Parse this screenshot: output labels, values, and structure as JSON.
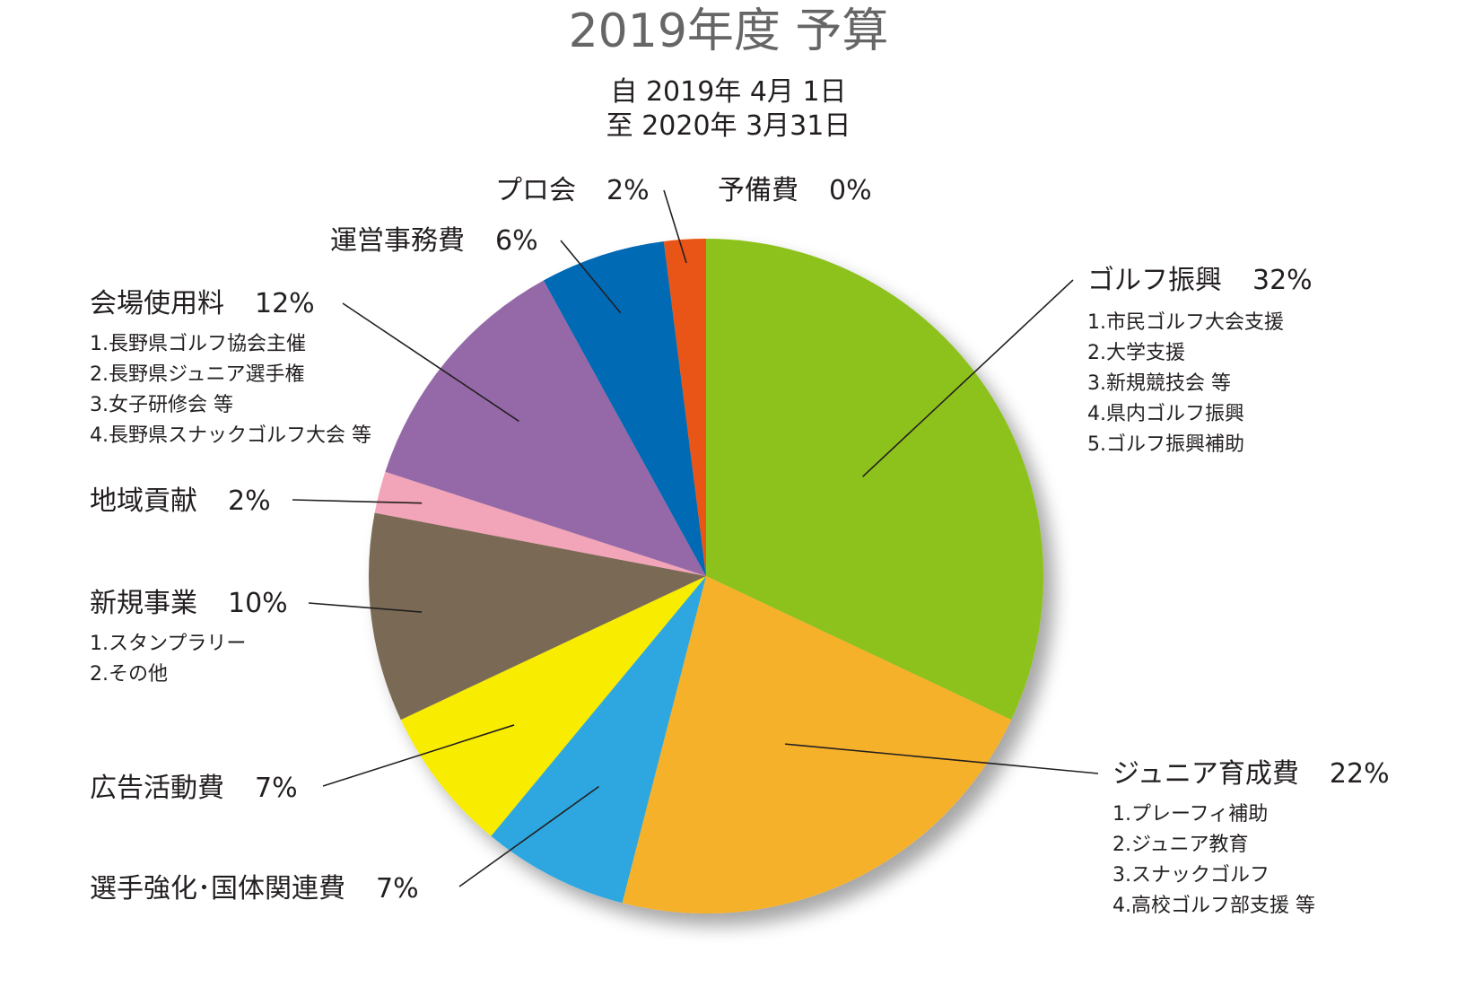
{
  "chart_data": {
    "type": "pie",
    "title": "2019年度 予算",
    "period": [
      "自 2019年 4月 1日",
      "至 2020年 3月31日"
    ],
    "slices": [
      {
        "name": "ゴルフ振興",
        "value": 32,
        "label": "32%",
        "color": "#8dc21f",
        "notes": [
          "1.市民ゴルフ大会支援",
          "2.大学支援",
          "3.新規競技会 等",
          "4.県内ゴルフ振興",
          "5.ゴルフ振興補助"
        ]
      },
      {
        "name": "ジュニア育成費",
        "value": 22,
        "label": "22%",
        "color": "#f6b12a",
        "notes": [
          "1.プレーフィ補助",
          "2.ジュニア教育",
          "3.スナックゴルフ",
          "4.高校ゴルフ部支援 等"
        ]
      },
      {
        "name": "選手強化･国体関連費",
        "value": 7,
        "label": "7%",
        "color": "#2ea7e0",
        "notes": []
      },
      {
        "name": "広告活動費",
        "value": 7,
        "label": "7%",
        "color": "#f8ec00",
        "notes": []
      },
      {
        "name": "新規事業",
        "value": 10,
        "label": "10%",
        "color": "#7a6a55",
        "notes": [
          "1.スタンプラリー",
          "2.その他"
        ]
      },
      {
        "name": "地域貢献",
        "value": 2,
        "label": "2%",
        "color": "#f2a5b8",
        "notes": []
      },
      {
        "name": "会場使用料",
        "value": 12,
        "label": "12%",
        "color": "#9569a8",
        "notes": [
          "1.長野県ゴルフ協会主催",
          "2.長野県ジュニア選手権",
          "3.女子研修会 等",
          "4.長野県スナックゴルフ大会 等"
        ]
      },
      {
        "name": "運営事務費",
        "value": 6,
        "label": "6%",
        "color": "#046bb5",
        "notes": []
      },
      {
        "name": "プロ会",
        "value": 2,
        "label": "2%",
        "color": "#e95513",
        "notes": []
      },
      {
        "name": "予備費",
        "value": 0,
        "label": "0%",
        "color": "#9a9a9a",
        "notes": []
      }
    ]
  }
}
